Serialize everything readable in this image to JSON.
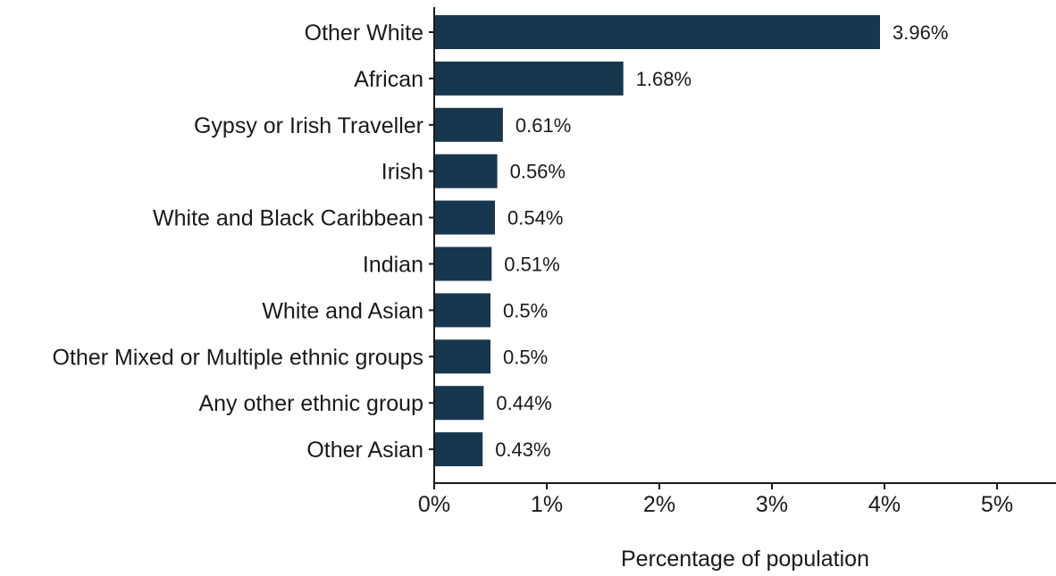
{
  "chart_data": {
    "type": "bar",
    "orientation": "horizontal",
    "categories": [
      "Other White",
      "African",
      "Gypsy or Irish Traveller",
      "Irish",
      "White and Black Caribbean",
      "Indian",
      "White and Asian",
      "Other Mixed or Multiple ethnic groups",
      "Any other ethnic group",
      "Other Asian"
    ],
    "values": [
      3.96,
      1.68,
      0.61,
      0.56,
      0.54,
      0.51,
      0.5,
      0.5,
      0.44,
      0.43
    ],
    "value_labels": [
      "3.96%",
      "1.68%",
      "0.61%",
      "0.56%",
      "0.54%",
      "0.51%",
      "0.5%",
      "0.5%",
      "0.44%",
      "0.43%"
    ],
    "title": "",
    "xlabel": "Percentage of population",
    "ylabel": "",
    "xlim": [
      0,
      5.5
    ],
    "x_ticks": [
      0,
      1,
      2,
      3,
      4,
      5
    ],
    "x_tick_labels": [
      "0%",
      "1%",
      "2%",
      "3%",
      "4%",
      "5%"
    ],
    "bar_color": "#17374f",
    "grid": false,
    "legend": "none"
  }
}
